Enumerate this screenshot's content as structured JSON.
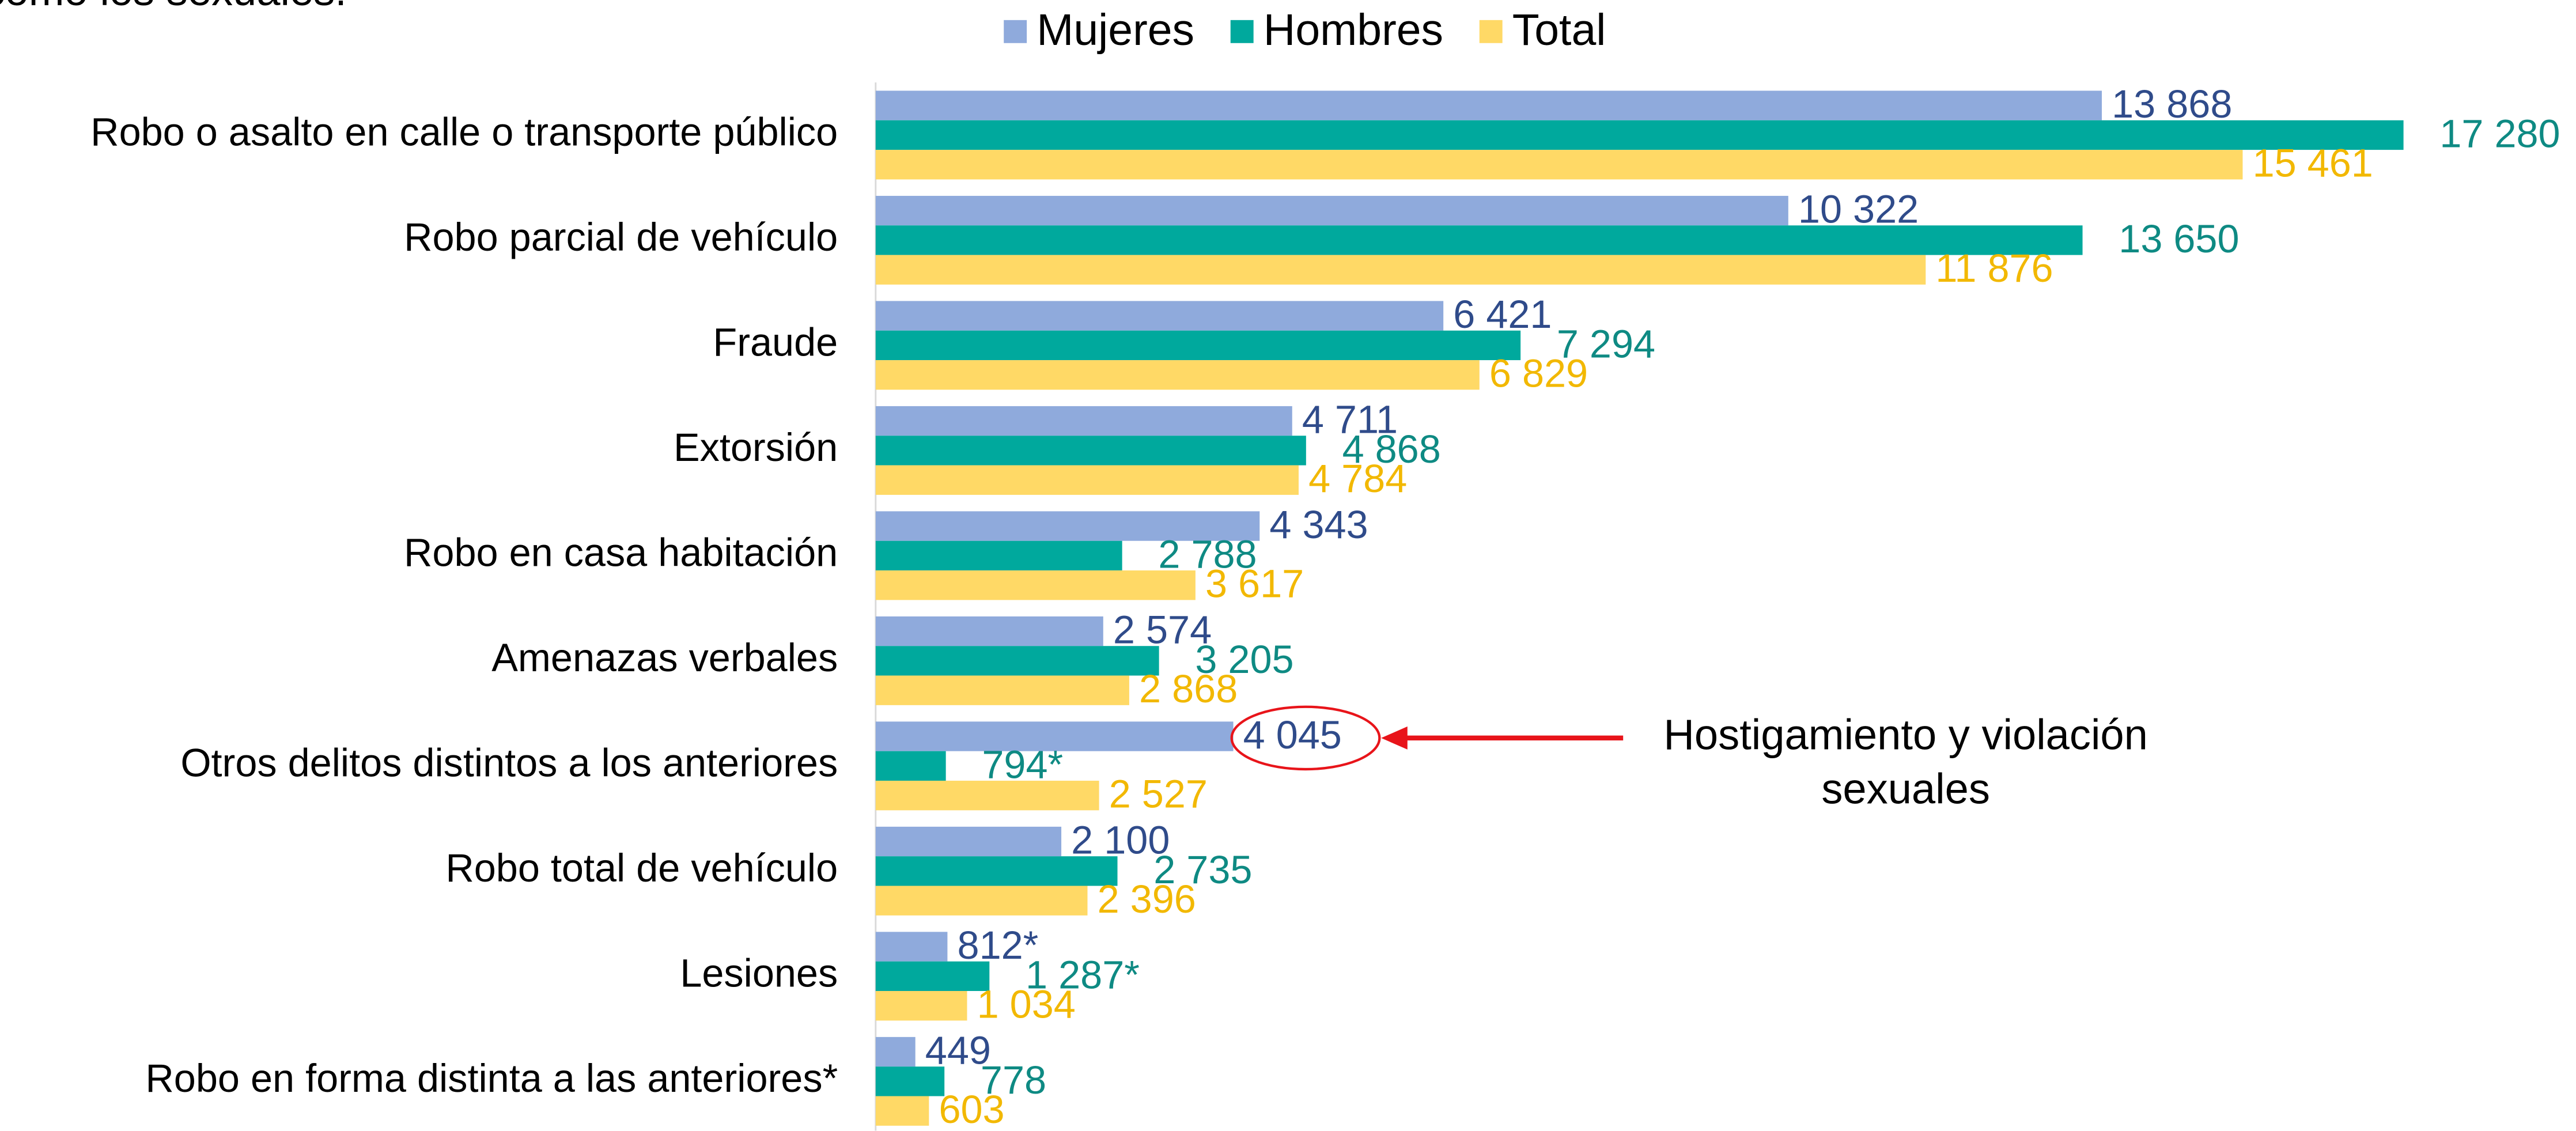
{
  "chart_data": {
    "type": "bar",
    "orientation": "horizontal",
    "subtitle": "como los sexuales.",
    "categories": [
      "Robo o asalto en calle o transporte público",
      "Robo parcial de vehículo",
      "Fraude",
      "Extorsión",
      "Robo en casa habitación",
      "Amenazas verbales",
      "Otros delitos distintos a los anteriores",
      "Robo total de vehículo",
      "Lesiones",
      "Robo en forma distinta a las anteriores*"
    ],
    "series": [
      {
        "name": "Mujeres",
        "color": "#8faadc",
        "label_color": "#2f4b8a",
        "values": [
          13868,
          10322,
          6421,
          4711,
          4343,
          2574,
          4045,
          2100,
          812,
          449
        ],
        "value_labels": [
          "13 868",
          "10 322",
          "6 421",
          "4 711",
          "4 343",
          "2 574",
          "4 045",
          "2 100",
          "812*",
          "449"
        ]
      },
      {
        "name": "Hombres",
        "color": "#00a99d",
        "label_color": "#0e8a83",
        "values": [
          17280,
          13650,
          7294,
          4868,
          2788,
          3205,
          794,
          2735,
          1287,
          778
        ],
        "value_labels": [
          "17 280",
          "13 650",
          "7 294",
          "4 868",
          "2 788",
          "3 205",
          "794*",
          "2 735",
          "1 287*",
          "778"
        ]
      },
      {
        "name": "Total",
        "color": "#ffd966",
        "label_color": "#f2b800",
        "values": [
          15461,
          11876,
          6829,
          4784,
          3617,
          2868,
          2527,
          2396,
          1034,
          603
        ],
        "value_labels": [
          "15 461",
          "11 876",
          "6 829",
          "4 784",
          "3 617",
          "2 868",
          "2 527",
          "2 396",
          "1 034",
          "603"
        ]
      }
    ],
    "annotation": {
      "lines": [
        "Hostigamiento y violación",
        "sexuales"
      ],
      "color": "#e8141a"
    },
    "legend": "top"
  }
}
